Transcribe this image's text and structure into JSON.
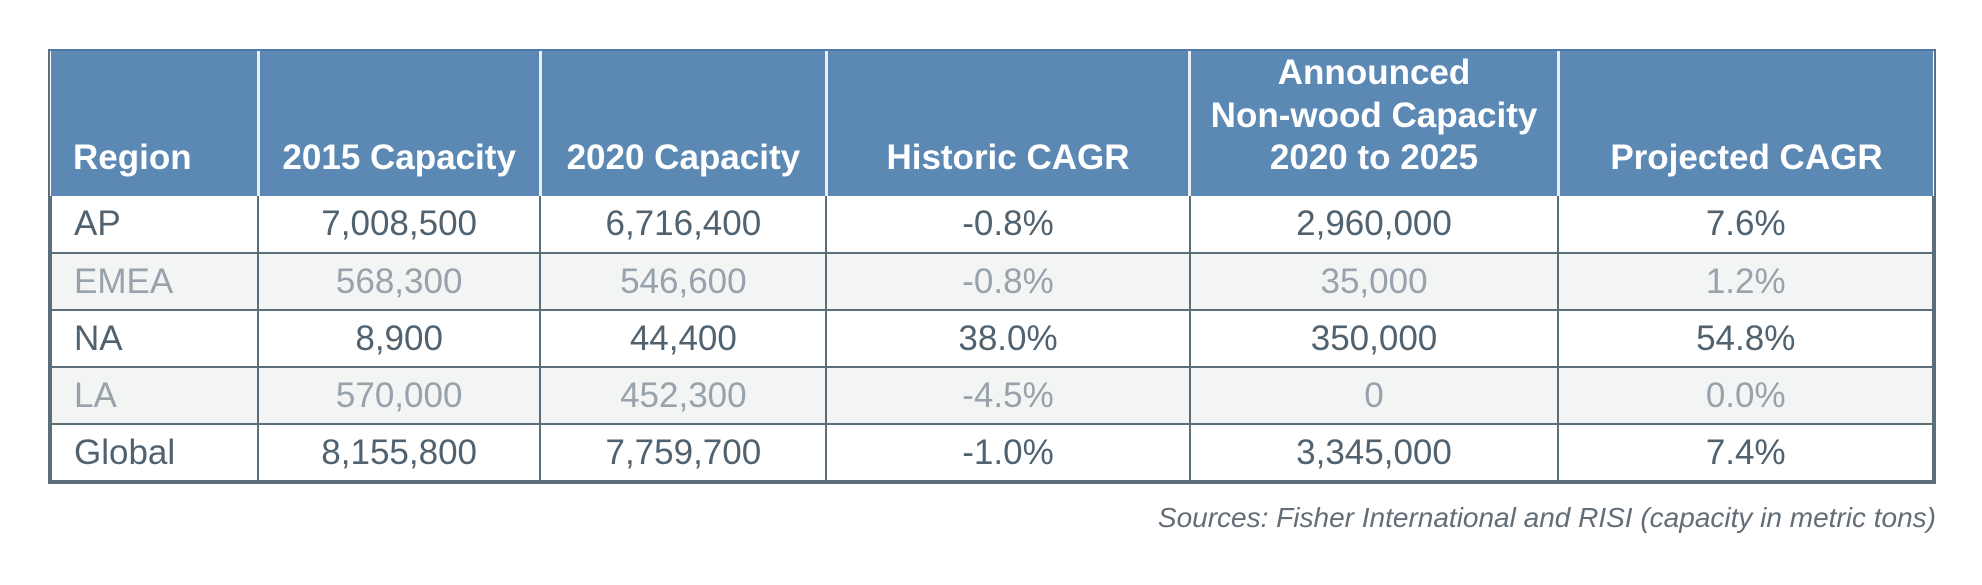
{
  "colors": {
    "header_bg": "#5b89b4",
    "header_text": "#ffffff",
    "header_divider": "#e9eff5",
    "header_top_border": "#4e79a7",
    "grid_border": "#5d6e7b",
    "row_shaded_bg": "#f3f4f4",
    "text_dark": "#50626f",
    "text_light": "#97a2ab",
    "source_text": "#626d78",
    "page_bg": "#ffffff"
  },
  "table": {
    "columns": [
      {
        "id": "region",
        "label_lines": [
          "Region"
        ],
        "align": "left",
        "width_pct": 11.0
      },
      {
        "id": "capacity-2015",
        "label_lines": [
          "2015 Capacity"
        ],
        "align": "center",
        "width_pct": 15.0
      },
      {
        "id": "capacity-2020",
        "label_lines": [
          "2020 Capacity"
        ],
        "align": "center",
        "width_pct": 15.2
      },
      {
        "id": "historic-cagr",
        "label_lines": [
          "Historic CAGR"
        ],
        "align": "center",
        "width_pct": 19.3
      },
      {
        "id": "announced-nonwood-capacity",
        "label_lines": [
          "Announced",
          "Non-wood Capacity",
          "2020 to 2025"
        ],
        "align": "center",
        "width_pct": 19.6
      },
      {
        "id": "projected-cagr",
        "label_lines": [
          "Projected CAGR"
        ],
        "align": "center",
        "width_pct": 19.9
      }
    ],
    "rows": [
      {
        "variant": "plain",
        "cells": [
          "AP",
          "7,008,500",
          "6,716,400",
          "-0.8%",
          "2,960,000",
          "7.6%"
        ]
      },
      {
        "variant": "shaded",
        "cells": [
          "EMEA",
          "568,300",
          "546,600",
          "-0.8%",
          "35,000",
          "1.2%"
        ]
      },
      {
        "variant": "plain",
        "cells": [
          "NA",
          "8,900",
          "44,400",
          "38.0%",
          "350,000",
          "54.8%"
        ]
      },
      {
        "variant": "shaded",
        "cells": [
          "LA",
          "570,000",
          "452,300",
          "-4.5%",
          "0",
          "0.0%"
        ]
      },
      {
        "variant": "plain",
        "cells": [
          "Global",
          "8,155,800",
          "7,759,700",
          "-1.0%",
          "3,345,000",
          "7.4%"
        ]
      }
    ]
  },
  "source_note": "Sources: Fisher International and RISI (capacity in metric tons)",
  "chart_data": {
    "type": "table",
    "columns": [
      "Region",
      "2015 Capacity",
      "2020 Capacity",
      "Historic CAGR",
      "Announced Non-wood Capacity 2020 to 2025",
      "Projected CAGR"
    ],
    "rows": [
      {
        "region": "AP",
        "capacity_2015": 7008500,
        "capacity_2020": 6716400,
        "historic_cagr_pct": -0.8,
        "announced_nonwood_capacity_2020_2025": 2960000,
        "projected_cagr_pct": 7.6
      },
      {
        "region": "EMEA",
        "capacity_2015": 568300,
        "capacity_2020": 546600,
        "historic_cagr_pct": -0.8,
        "announced_nonwood_capacity_2020_2025": 35000,
        "projected_cagr_pct": 1.2
      },
      {
        "region": "NA",
        "capacity_2015": 8900,
        "capacity_2020": 44400,
        "historic_cagr_pct": 38.0,
        "announced_nonwood_capacity_2020_2025": 350000,
        "projected_cagr_pct": 54.8
      },
      {
        "region": "LA",
        "capacity_2015": 570000,
        "capacity_2020": 452300,
        "historic_cagr_pct": -4.5,
        "announced_nonwood_capacity_2020_2025": 0,
        "projected_cagr_pct": 0.0
      },
      {
        "region": "Global",
        "capacity_2015": 8155800,
        "capacity_2020": 7759700,
        "historic_cagr_pct": -1.0,
        "announced_nonwood_capacity_2020_2025": 3345000,
        "projected_cagr_pct": 7.4
      }
    ],
    "units": "metric tons",
    "footnote": "Sources: Fisher International and RISI (capacity in metric tons)"
  }
}
